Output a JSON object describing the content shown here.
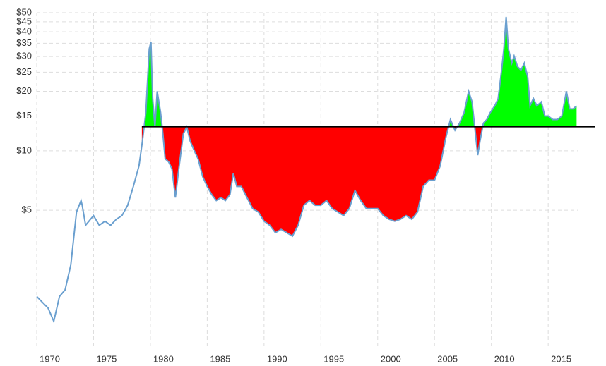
{
  "chart_data": {
    "type": "line",
    "log_scale": true,
    "grid": true,
    "color": "#6a9fcf",
    "fill_below_color": "#ff0000",
    "fill_above_color": "#00ff00",
    "reference_color": "#000000",
    "reference_line": {
      "value": 13.24,
      "start": 1979.25
    },
    "x": [
      1970.0,
      1970.5,
      1971.0,
      1971.5,
      1972.0,
      1972.5,
      1973.0,
      1973.5,
      1973.9,
      1974.0,
      1974.3,
      1975.0,
      1975.5,
      1976.0,
      1976.5,
      1977.0,
      1977.5,
      1978.0,
      1978.5,
      1979.0,
      1979.3,
      1979.6,
      1979.9,
      1980.05,
      1980.2,
      1980.4,
      1980.6,
      1980.9,
      1981.1,
      1981.3,
      1981.6,
      1981.9,
      1982.2,
      1982.5,
      1982.9,
      1983.2,
      1983.5,
      1983.9,
      1984.2,
      1984.6,
      1985.0,
      1985.4,
      1985.8,
      1986.2,
      1986.6,
      1987.0,
      1987.3,
      1987.6,
      1988.0,
      1988.5,
      1989.0,
      1989.5,
      1990.0,
      1990.5,
      1991.0,
      1991.5,
      1992.0,
      1992.5,
      1993.0,
      1993.5,
      1994.0,
      1994.5,
      1995.0,
      1995.5,
      1996.0,
      1996.5,
      1997.0,
      1997.5,
      1998.0,
      1998.5,
      1999.0,
      1999.5,
      2000.0,
      2000.5,
      2001.0,
      2001.5,
      2002.0,
      2002.5,
      2003.0,
      2003.5,
      2004.0,
      2004.5,
      2005.0,
      2005.5,
      2006.0,
      2006.4,
      2006.8,
      2007.2,
      2007.6,
      2008.0,
      2008.3,
      2008.6,
      2008.8,
      2009.0,
      2009.3,
      2009.6,
      2009.9,
      2010.3,
      2010.6,
      2010.9,
      2011.1,
      2011.3,
      2011.5,
      2011.8,
      2012.0,
      2012.3,
      2012.6,
      2012.9,
      2013.2,
      2013.4,
      2013.7,
      2014.0,
      2014.4,
      2014.7,
      2015.0,
      2015.4,
      2015.8,
      2016.2,
      2016.6,
      2016.9,
      2017.2,
      2017.5
    ],
    "values": [
      1.83,
      1.71,
      1.6,
      1.37,
      1.83,
      1.98,
      2.65,
      4.9,
      5.6,
      5.3,
      4.2,
      4.7,
      4.2,
      4.4,
      4.2,
      4.5,
      4.7,
      5.3,
      6.6,
      8.4,
      11.2,
      15.6,
      32.8,
      35.6,
      18.4,
      13.2,
      20.0,
      15.6,
      12.2,
      9.1,
      8.8,
      8.1,
      5.8,
      8.1,
      12.2,
      13.2,
      11.2,
      9.9,
      9.1,
      7.4,
      6.6,
      6.0,
      5.6,
      5.8,
      5.6,
      6.0,
      7.7,
      6.6,
      6.6,
      5.8,
      5.1,
      4.9,
      4.4,
      4.2,
      3.85,
      4.0,
      3.85,
      3.7,
      4.2,
      5.3,
      5.6,
      5.3,
      5.3,
      5.6,
      5.1,
      4.9,
      4.7,
      5.1,
      6.3,
      5.6,
      5.1,
      5.1,
      5.1,
      4.7,
      4.5,
      4.4,
      4.5,
      4.7,
      4.5,
      4.9,
      6.6,
      7.1,
      7.1,
      8.4,
      11.7,
      14.4,
      12.7,
      13.8,
      15.6,
      20.0,
      17.7,
      12.2,
      9.5,
      11.2,
      13.8,
      14.4,
      15.6,
      16.9,
      18.4,
      25.6,
      32.8,
      47.6,
      32.8,
      27.8,
      30.2,
      26.7,
      25.6,
      27.8,
      23.6,
      16.9,
      18.4,
      16.9,
      17.7,
      15.0,
      15.0,
      14.4,
      14.4,
      15.0,
      20.0,
      16.3,
      16.3,
      16.9
    ],
    "xlim": [
      1970,
      2017.6
    ],
    "ylim": [
      1,
      50
    ],
    "xticks": [
      1970,
      1975,
      1980,
      1985,
      1990,
      1995,
      2000,
      2005,
      2010,
      2015
    ],
    "yticks": [
      {
        "value": 5,
        "label": "$5"
      },
      {
        "value": 10,
        "label": "$10"
      },
      {
        "value": 15,
        "label": "$15"
      },
      {
        "value": 20,
        "label": "$20"
      },
      {
        "value": 25,
        "label": "$25"
      },
      {
        "value": 30,
        "label": "$30"
      },
      {
        "value": 35,
        "label": "$35"
      },
      {
        "value": 40,
        "label": "$40"
      },
      {
        "value": 45,
        "label": "$45"
      },
      {
        "value": 50,
        "label": "$50"
      }
    ]
  }
}
